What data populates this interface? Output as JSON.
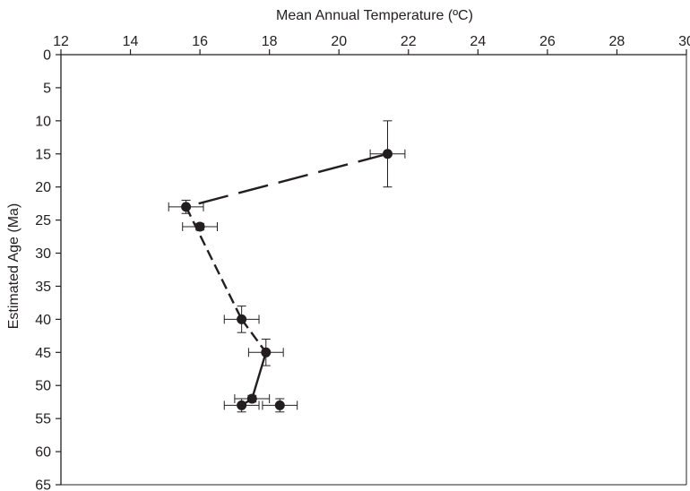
{
  "chart_data": {
    "type": "scatter",
    "title": "",
    "xlabel": "Mean Annual Temperature (ºC)",
    "ylabel": "Estimated Age (Ma)",
    "xlim": [
      12,
      30
    ],
    "ylim": [
      0,
      65
    ],
    "y_inverted": true,
    "x_axis_position": "top",
    "x_ticks": [
      12,
      14,
      16,
      18,
      20,
      22,
      24,
      26,
      28,
      30
    ],
    "y_ticks": [
      0,
      5,
      10,
      15,
      20,
      25,
      30,
      35,
      40,
      45,
      50,
      55,
      60,
      65
    ],
    "grid": false,
    "legend": "none",
    "colors": {
      "marker": "#231f20",
      "line": "#231f20"
    },
    "points": [
      {
        "x": 21.4,
        "y": 15,
        "x_err": 0.5,
        "y_err": 5
      },
      {
        "x": 15.6,
        "y": 23,
        "x_err": 0.5,
        "y_err": 1
      },
      {
        "x": 16.0,
        "y": 26,
        "x_err": 0.5,
        "y_err": 0.5
      },
      {
        "x": 17.2,
        "y": 40,
        "x_err": 0.5,
        "y_err": 2
      },
      {
        "x": 17.9,
        "y": 45,
        "x_err": 0.5,
        "y_err": 2
      },
      {
        "x": 17.5,
        "y": 52,
        "x_err": 0.5,
        "y_err": 0.5
      },
      {
        "x": 17.2,
        "y": 53,
        "x_err": 0.5,
        "y_err": 1
      },
      {
        "x": 18.3,
        "y": 53,
        "x_err": 0.5,
        "y_err": 1
      }
    ],
    "line_segments": [
      {
        "style": "long-dash",
        "from": [
          21.4,
          15
        ],
        "to": [
          15.6,
          23
        ]
      },
      {
        "style": "dash",
        "from": [
          15.6,
          23
        ],
        "to": [
          17.2,
          40
        ]
      },
      {
        "style": "dash",
        "from": [
          17.2,
          40
        ],
        "to": [
          17.9,
          45
        ]
      },
      {
        "style": "solid",
        "from": [
          17.9,
          45
        ],
        "to": [
          17.5,
          52
        ]
      },
      {
        "style": "solid",
        "from": [
          17.5,
          52
        ],
        "to": [
          17.2,
          53
        ]
      }
    ]
  }
}
